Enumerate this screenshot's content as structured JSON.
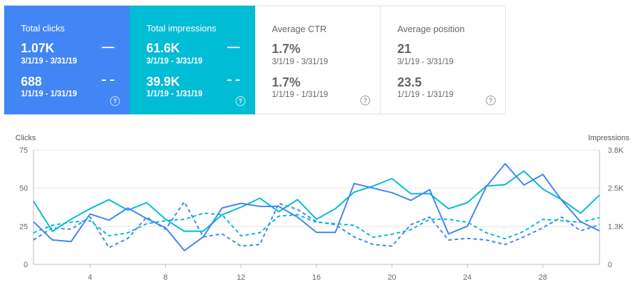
{
  "cards": {
    "clicks": {
      "title": "Total clicks",
      "value1": "1.07K",
      "date1": "3/1/19 - 3/31/19",
      "value2": "688",
      "date2": "1/1/19 - 1/31/19",
      "color": "#4285f4"
    },
    "impressions": {
      "title": "Total impressions",
      "value1": "61.6K",
      "date1": "3/1/19 - 3/31/19",
      "value2": "39.9K",
      "date2": "1/1/19 - 1/31/19",
      "color": "#00bcd4"
    },
    "ctr": {
      "title": "Average CTR",
      "value1": "1.7%",
      "date1": "3/1/19 - 3/31/19",
      "value2": "1.7%",
      "date2": "1/1/19 - 1/31/19"
    },
    "position": {
      "title": "Average position",
      "value1": "21",
      "date1": "3/1/19 - 3/31/19",
      "value2": "23.5",
      "date2": "1/1/19 - 1/31/19"
    },
    "help_glyph": "?"
  },
  "chart_data": {
    "type": "line",
    "xlabel": "",
    "ylabel_left": "Clicks",
    "ylabel_right": "Impressions",
    "ylim_left": [
      0,
      75
    ],
    "ylim_right": [
      0,
      3800
    ],
    "yticks_left": [
      "75",
      "50",
      "25",
      "0"
    ],
    "yticks_right": [
      "3.8K",
      "2.5K",
      "1.3K",
      "0"
    ],
    "xticks": [
      "4",
      "8",
      "12",
      "16",
      "20",
      "24",
      "28"
    ],
    "grid": true,
    "x": [
      1,
      2,
      3,
      4,
      5,
      6,
      7,
      8,
      9,
      10,
      11,
      12,
      13,
      14,
      15,
      16,
      17,
      18,
      19,
      20,
      21,
      22,
      23,
      24,
      25,
      26,
      27,
      28,
      29,
      30,
      31
    ],
    "series": [
      {
        "metric": "clicks",
        "period": "3/1/19 - 3/31/19",
        "axis": "left",
        "style": "solid",
        "color": "#4285f4",
        "values": [
          28,
          16,
          15,
          33,
          29,
          37,
          30,
          24,
          9,
          18,
          37,
          40,
          38,
          38,
          31,
          21,
          21,
          53,
          50,
          47,
          42,
          49,
          20,
          25,
          51,
          66,
          52,
          59,
          42,
          28,
          22
        ]
      },
      {
        "metric": "impressions",
        "period": "3/1/19 - 3/31/19",
        "axis": "right",
        "style": "solid",
        "color": "#00bcd4",
        "values": [
          2100,
          1100,
          1500,
          1850,
          2150,
          1800,
          2050,
          1500,
          1100,
          1100,
          1650,
          1900,
          2200,
          1750,
          2150,
          1500,
          1850,
          2400,
          2600,
          2850,
          2350,
          2350,
          1850,
          2050,
          2600,
          2650,
          3100,
          2500,
          2150,
          1700,
          2300
        ]
      },
      {
        "metric": "clicks",
        "period": "1/1/19 - 1/31/19",
        "axis": "left",
        "style": "dashed",
        "color": "#4285f4",
        "values": [
          16,
          24,
          23,
          31,
          11,
          17,
          31,
          23,
          41,
          18,
          20,
          12,
          13,
          40,
          36,
          28,
          26,
          18,
          13,
          12,
          26,
          31,
          16,
          17,
          16,
          13,
          18,
          24,
          31,
          22,
          26
        ]
      },
      {
        "metric": "impressions",
        "period": "1/1/19 - 1/31/19",
        "axis": "right",
        "style": "dashed",
        "color": "#00bcd4",
        "values": [
          1050,
          1300,
          1400,
          1450,
          950,
          1050,
          1350,
          1450,
          1500,
          1700,
          1650,
          950,
          1050,
          1600,
          1650,
          1400,
          1350,
          1300,
          900,
          1000,
          1150,
          1500,
          1500,
          1400,
          1050,
          850,
          1100,
          1500,
          1450,
          1400,
          1550
        ]
      }
    ]
  }
}
